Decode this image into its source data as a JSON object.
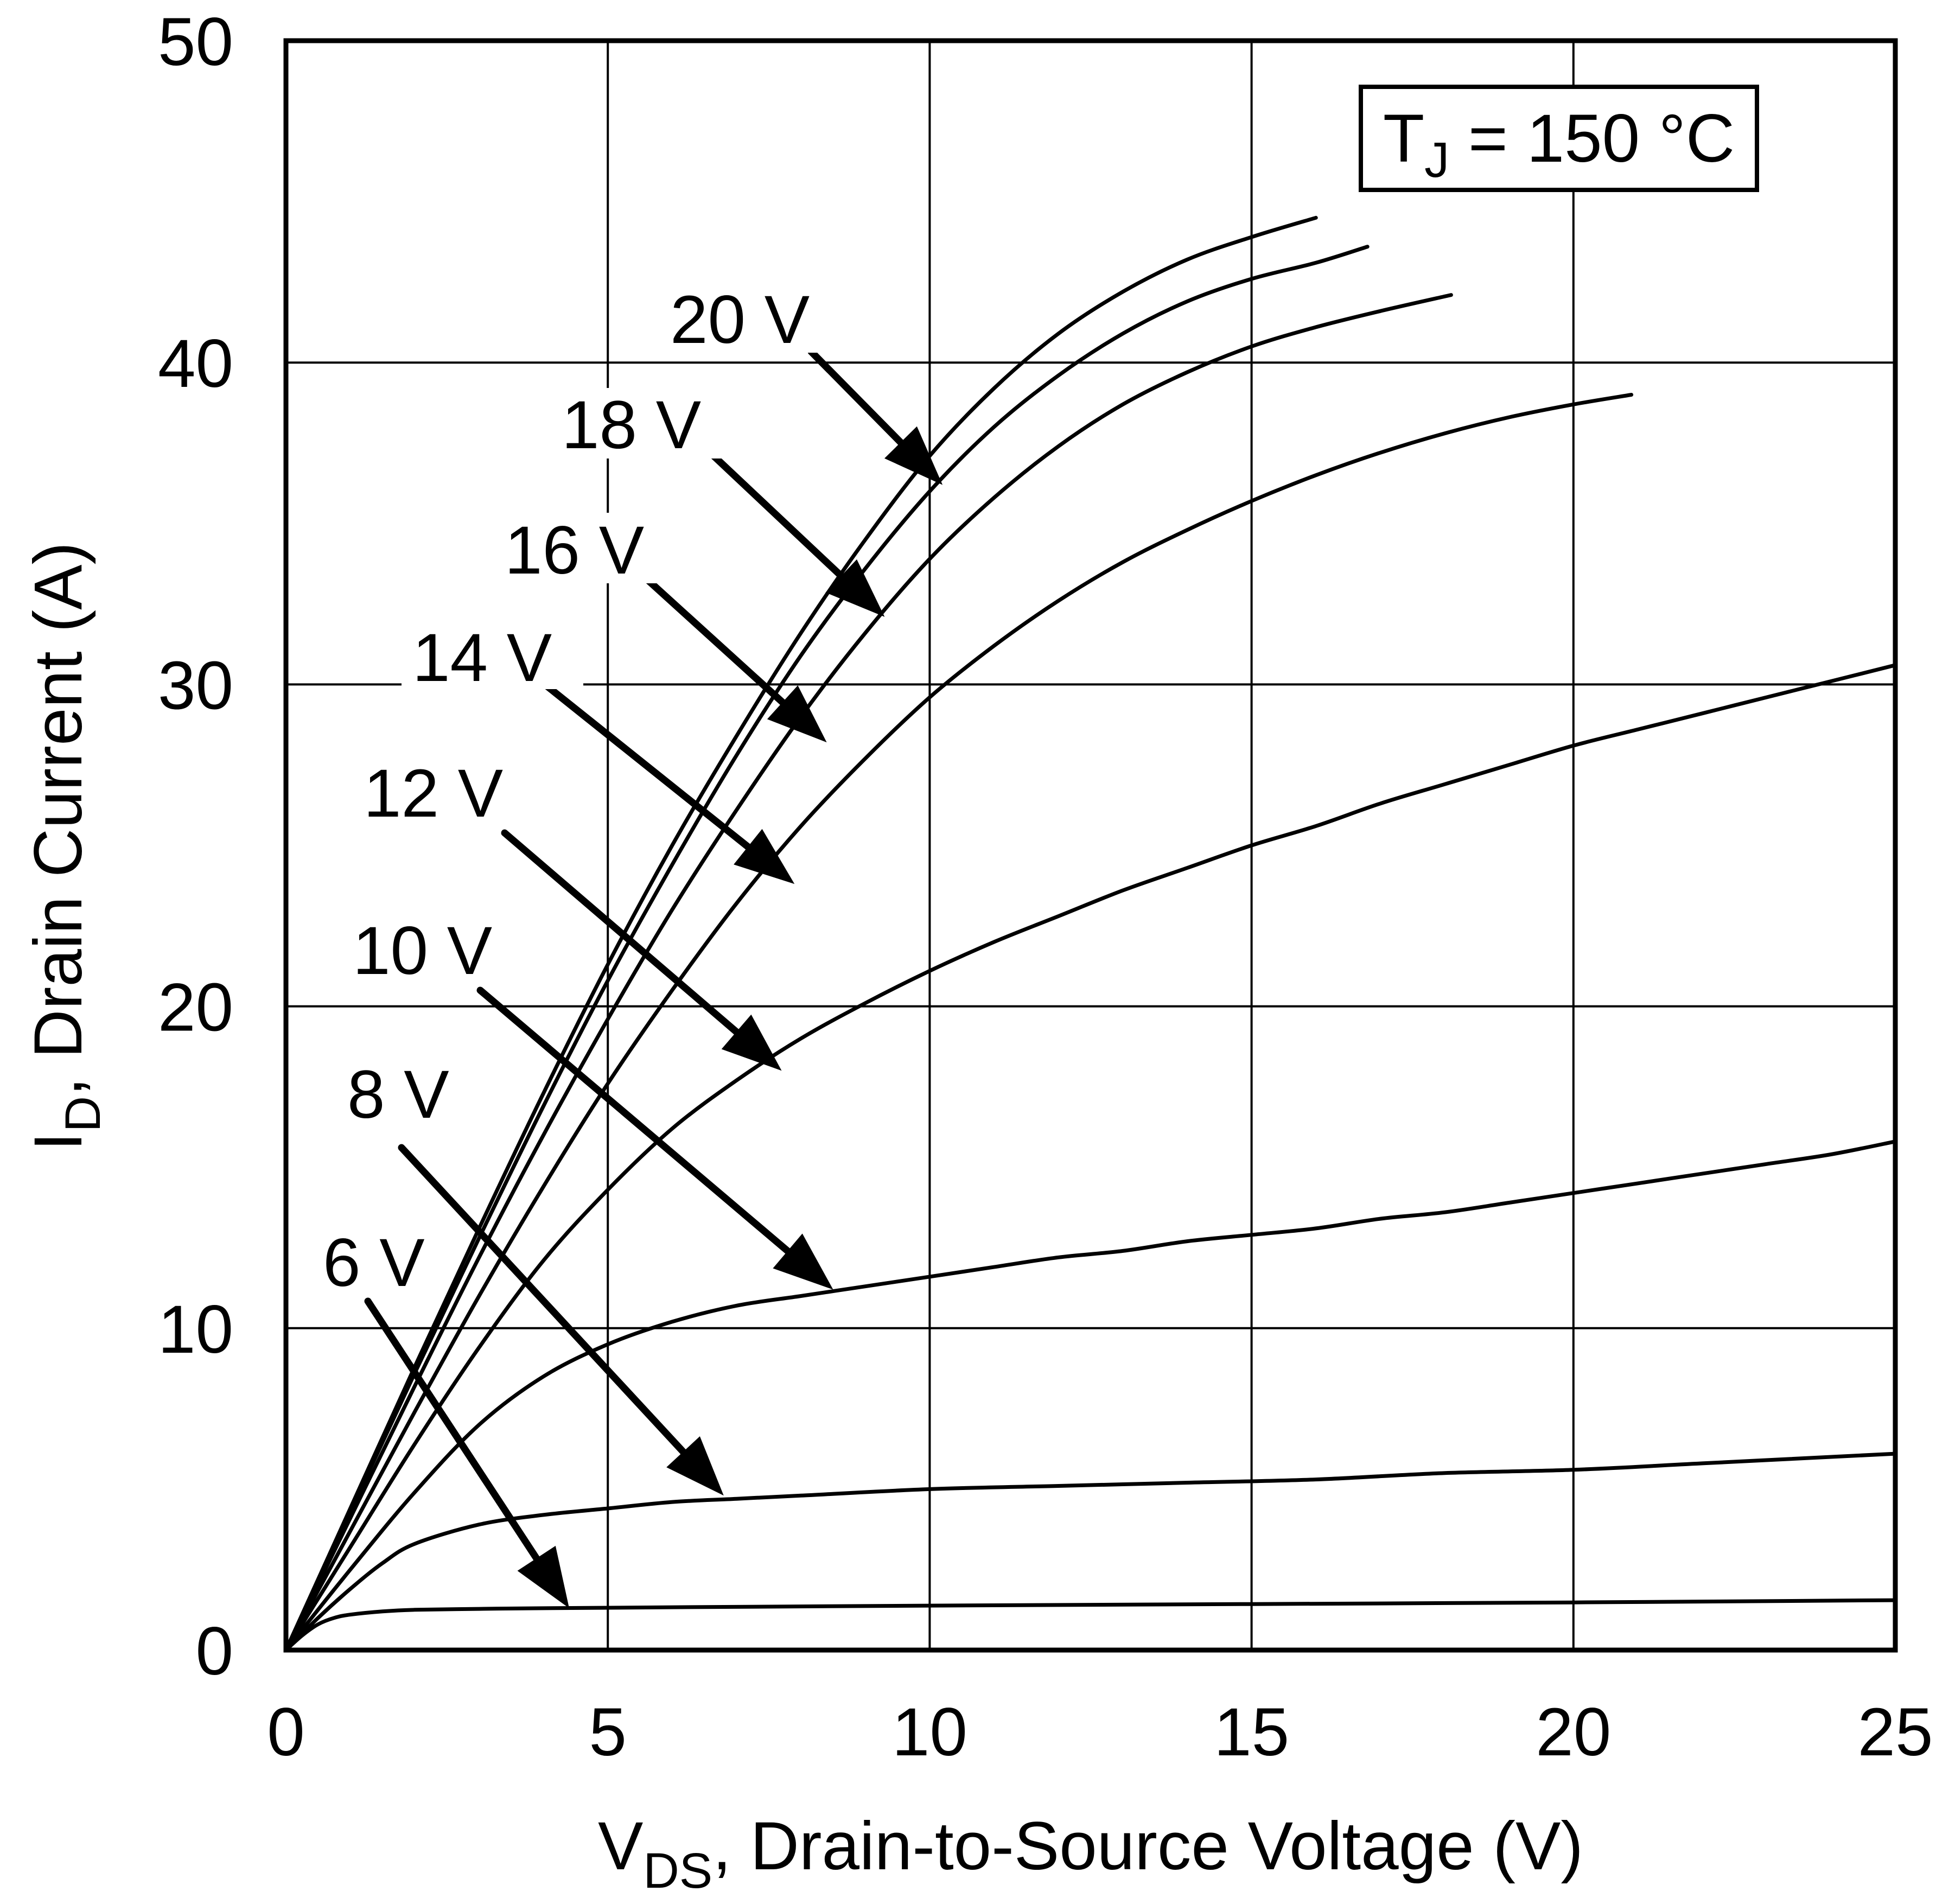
{
  "chart_data": {
    "type": "line",
    "title": "",
    "annotation": {
      "main": "T",
      "sub": "J",
      "rest": " = 150 °C"
    },
    "xlabel": {
      "main": "V",
      "sub": "DS",
      "rest": ", Drain-to-Source Voltage (V)"
    },
    "ylabel": {
      "main": "I",
      "sub": "D",
      "rest": ", Drain Current (A)"
    },
    "xlim": [
      0,
      25
    ],
    "ylim": [
      0,
      50
    ],
    "xticks": [
      "0",
      "5",
      "10",
      "15",
      "20",
      "25"
    ],
    "yticks": [
      "0",
      "10",
      "20",
      "30",
      "40",
      "50"
    ],
    "grid": true,
    "series": [
      {
        "name": "20 V",
        "x": [
          0,
          1,
          2,
          3,
          4,
          5,
          6,
          7,
          8,
          9,
          10,
          11,
          12,
          13,
          14,
          15,
          16
        ],
        "y": [
          0,
          4.4,
          8.8,
          13.1,
          17.3,
          21.3,
          25.0,
          28.4,
          31.6,
          34.5,
          37.1,
          39.2,
          40.9,
          42.2,
          43.2,
          43.9,
          44.5
        ],
        "label_at": [
          10.2,
          36.2
        ]
      },
      {
        "name": "18 V",
        "x": [
          0,
          1,
          2,
          3,
          4,
          5,
          6,
          7,
          8,
          9,
          10,
          11,
          12,
          13,
          14,
          15,
          16,
          16.8
        ],
        "y": [
          0,
          4.3,
          8.6,
          12.8,
          16.9,
          20.8,
          24.4,
          27.8,
          30.9,
          33.6,
          36.0,
          38.0,
          39.6,
          40.9,
          41.9,
          42.6,
          43.1,
          43.6
        ],
        "label_at": [
          9.3,
          32.1
        ]
      },
      {
        "name": "16 V",
        "x": [
          0,
          1,
          2,
          3,
          4,
          5,
          6,
          7,
          8,
          9,
          10,
          11,
          12,
          13,
          14,
          15,
          16,
          17,
          18.1
        ],
        "y": [
          0,
          4.1,
          8.2,
          12.2,
          16.0,
          19.6,
          23.0,
          26.1,
          29.0,
          31.6,
          33.9,
          35.8,
          37.4,
          38.7,
          39.7,
          40.5,
          41.1,
          41.6,
          42.1
        ],
        "label_at": [
          8.4,
          28.2
        ]
      },
      {
        "name": "14 V",
        "x": [
          0,
          1,
          2,
          3,
          4,
          5,
          6,
          7,
          8,
          9,
          10,
          11,
          12,
          13,
          14,
          15,
          16,
          17,
          18,
          19,
          20,
          20.9
        ],
        "y": [
          0,
          3.7,
          7.4,
          11.0,
          14.4,
          17.6,
          20.5,
          23.2,
          25.6,
          27.7,
          29.6,
          31.2,
          32.6,
          33.8,
          34.8,
          35.7,
          36.5,
          37.2,
          37.8,
          38.3,
          38.7,
          39.0
        ],
        "label_at": [
          7.9,
          23.8
        ]
      },
      {
        "name": "12 V",
        "x": [
          0,
          1,
          2,
          3,
          4,
          5,
          6,
          7,
          8,
          9,
          10,
          11,
          12,
          13,
          14,
          15,
          16,
          17,
          18,
          19,
          20,
          21,
          22,
          23,
          24,
          25
        ],
        "y": [
          0,
          3.2,
          6.4,
          9.4,
          12.1,
          14.3,
          16.2,
          17.7,
          19.0,
          20.1,
          21.1,
          22.0,
          22.8,
          23.6,
          24.3,
          25.0,
          25.6,
          26.3,
          26.9,
          27.5,
          28.1,
          28.6,
          29.1,
          29.6,
          30.1,
          30.6
        ],
        "label_at": [
          7.7,
          18.0
        ]
      },
      {
        "name": "10 V",
        "x": [
          0,
          1,
          2,
          3,
          4,
          5,
          6,
          7,
          8,
          9,
          10,
          11,
          12,
          13,
          14,
          15,
          16,
          17,
          18,
          19,
          20,
          21,
          22,
          23,
          24,
          25
        ],
        "y": [
          0,
          2.5,
          4.9,
          7.0,
          8.5,
          9.5,
          10.2,
          10.7,
          11.0,
          11.3,
          11.6,
          11.9,
          12.2,
          12.4,
          12.7,
          12.9,
          13.1,
          13.4,
          13.6,
          13.9,
          14.2,
          14.5,
          14.8,
          15.1,
          15.4,
          15.8
        ],
        "label_at": [
          8.5,
          11.2
        ]
      },
      {
        "name": "8 V",
        "x": [
          0,
          0.5,
          1,
          1.5,
          2,
          3,
          4,
          5,
          6,
          7,
          8,
          10,
          12,
          14,
          16,
          18,
          20,
          22,
          25
        ],
        "y": [
          0,
          1.0,
          1.9,
          2.7,
          3.3,
          3.9,
          4.2,
          4.4,
          4.6,
          4.7,
          4.8,
          5.0,
          5.1,
          5.2,
          5.3,
          5.5,
          5.6,
          5.8,
          6.1
        ],
        "label_at": [
          6.8,
          4.8
        ]
      },
      {
        "name": "6 V",
        "x": [
          0,
          0.25,
          0.5,
          0.75,
          1,
          1.5,
          2,
          3,
          4,
          6,
          10,
          15,
          20,
          25
        ],
        "y": [
          0,
          0.45,
          0.8,
          1.0,
          1.1,
          1.2,
          1.25,
          1.28,
          1.3,
          1.33,
          1.38,
          1.43,
          1.48,
          1.55
        ],
        "label_at": [
          4.4,
          1.3
        ]
      }
    ]
  }
}
